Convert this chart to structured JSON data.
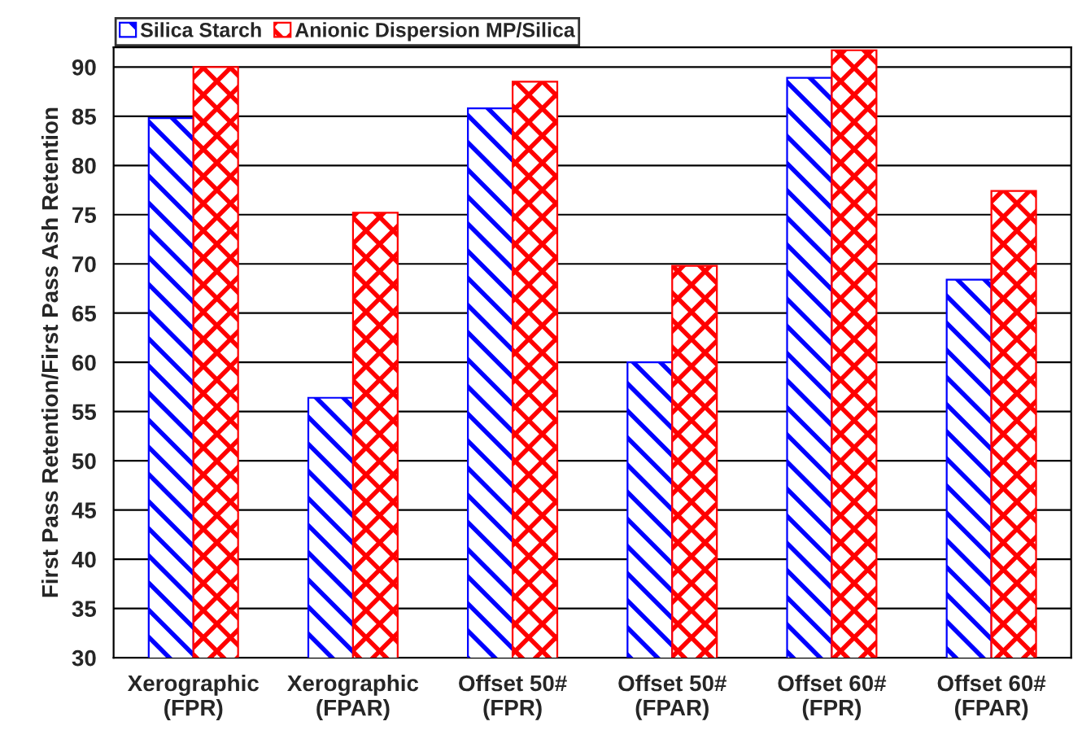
{
  "chart_data": {
    "type": "bar",
    "ylabel": "First Pass Retention/First Pass Ash Retention",
    "categories": [
      "Xerographic\n(FPR)",
      "Xerographic\n(FPAR)",
      "Offset 50#\n(FPR)",
      "Offset 50#\n(FPAR)",
      "Offset 60#\n(FPR)",
      "Offset 60#\n(FPAR)"
    ],
    "series": [
      {
        "name": "Silica Starch",
        "color": "#0000ff",
        "values": [
          84.8,
          56.4,
          85.8,
          60.0,
          88.9,
          68.4
        ]
      },
      {
        "name": "Anionic Dispersion MP/Silica",
        "color": "#ff0000",
        "values": [
          90.0,
          75.2,
          88.5,
          69.8,
          91.7,
          77.4
        ]
      }
    ],
    "ylim": [
      30,
      92
    ],
    "yticks": [
      30,
      35,
      40,
      45,
      50,
      55,
      60,
      65,
      70,
      75,
      80,
      85,
      90
    ],
    "grid": "y",
    "legend": "top left"
  }
}
